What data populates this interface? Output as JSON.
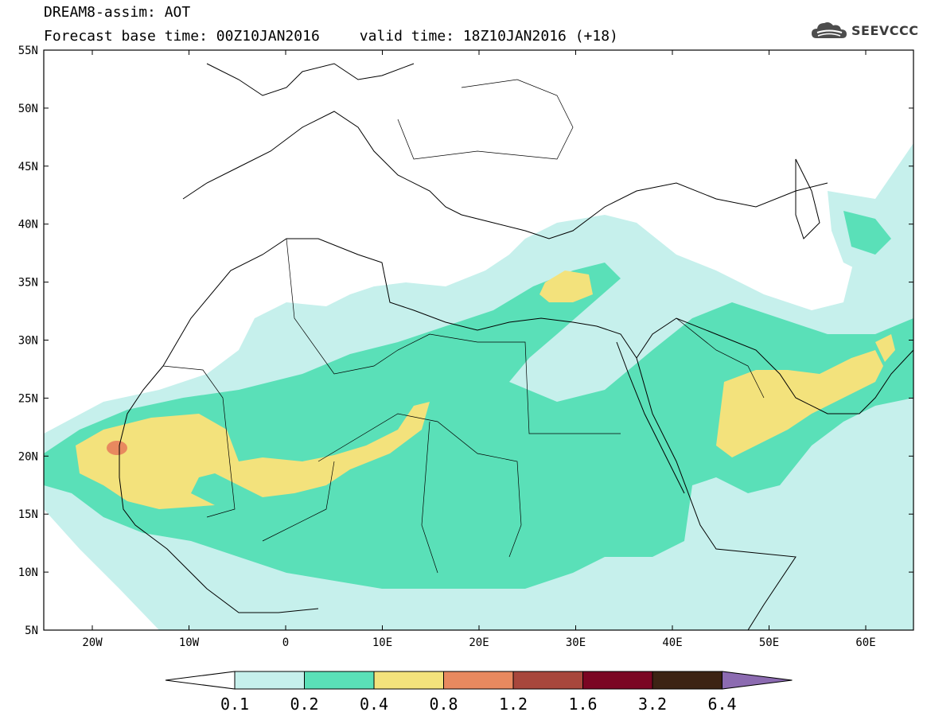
{
  "header": {
    "model_label": "DREAM8-assim: AOT",
    "forecast_label": "Forecast base time: 00Z10JAN2016",
    "valid_label": "valid time: 18Z10JAN2016 (+18)"
  },
  "logo": {
    "text": "SEEVCCC",
    "icon": "cloud-logo-icon"
  },
  "map": {
    "lat_ticks": [
      "55N",
      "50N",
      "45N",
      "40N",
      "35N",
      "30N",
      "25N",
      "20N",
      "15N",
      "10N",
      "5N"
    ],
    "lon_ticks": [
      "20W",
      "10W",
      "0",
      "10E",
      "20E",
      "30E",
      "40E",
      "50E",
      "60E"
    ]
  },
  "legend": {
    "levels": [
      "0.1",
      "0.2",
      "0.4",
      "0.8",
      "1.2",
      "1.6",
      "3.2",
      "6.4"
    ],
    "colors": [
      "#ffffff",
      "#c6f0ec",
      "#5ae0b8",
      "#f3e27c",
      "#e8895f",
      "#a8473c",
      "#7b0623",
      "#3c2314",
      "#8c6bb1"
    ]
  },
  "colors": {
    "lowest": "#c6f0ec",
    "mid": "#5ae0b8",
    "high": "#f3e27c",
    "peak": "#e8895f"
  }
}
